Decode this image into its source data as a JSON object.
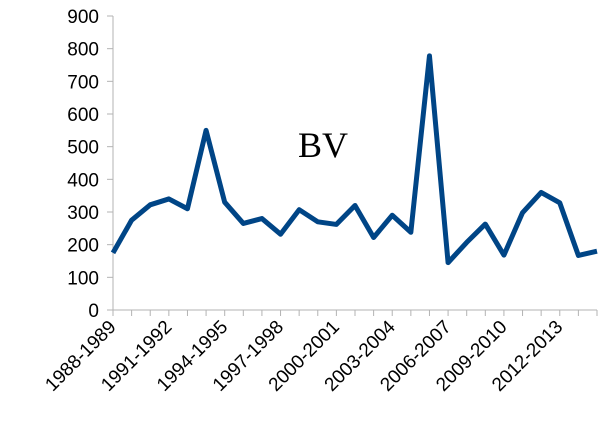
{
  "chart_data": {
    "type": "line",
    "title": "BV",
    "categories": [
      "1988-1989",
      null,
      null,
      "1991-1992",
      null,
      null,
      "1994-1995",
      null,
      null,
      "1997-1998",
      null,
      null,
      "2000-2001",
      null,
      null,
      "2003-2004",
      null,
      null,
      "2006-2007",
      null,
      null,
      "2009-2010",
      null,
      null,
      "2012-2013",
      null,
      null
    ],
    "series": [
      {
        "name": "BV",
        "color": "#004586",
        "values": [
          175,
          275,
          322,
          340,
          310,
          550,
          330,
          265,
          280,
          232,
          307,
          270,
          262,
          320,
          222,
          290,
          238,
          778,
          145,
          207,
          263,
          168,
          298,
          360,
          328,
          167,
          180
        ]
      }
    ],
    "ylim": [
      0,
      900
    ],
    "yticks": [
      0,
      100,
      200,
      300,
      400,
      500,
      600,
      700,
      800,
      900
    ],
    "grid": false
  }
}
